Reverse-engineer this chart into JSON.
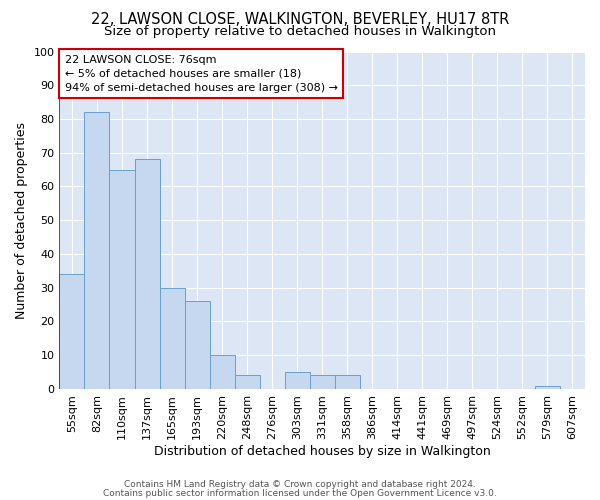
{
  "title1": "22, LAWSON CLOSE, WALKINGTON, BEVERLEY, HU17 8TR",
  "title2": "Size of property relative to detached houses in Walkington",
  "xlabel": "Distribution of detached houses by size in Walkington",
  "ylabel": "Number of detached properties",
  "footnote1": "Contains HM Land Registry data © Crown copyright and database right 2024.",
  "footnote2": "Contains public sector information licensed under the Open Government Licence v3.0.",
  "annotation_title": "22 LAWSON CLOSE: 76sqm",
  "annotation_line1": "← 5% of detached houses are smaller (18)",
  "annotation_line2": "94% of semi-detached houses are larger (308) →",
  "bar_labels": [
    "55sqm",
    "82sqm",
    "110sqm",
    "137sqm",
    "165sqm",
    "193sqm",
    "220sqm",
    "248sqm",
    "276sqm",
    "303sqm",
    "331sqm",
    "358sqm",
    "386sqm",
    "414sqm",
    "441sqm",
    "469sqm",
    "497sqm",
    "524sqm",
    "552sqm",
    "579sqm",
    "607sqm"
  ],
  "bar_values": [
    34,
    82,
    65,
    68,
    30,
    26,
    10,
    4,
    0,
    5,
    4,
    4,
    0,
    0,
    0,
    0,
    0,
    0,
    0,
    1,
    0
  ],
  "bar_color": "#c5d8f0",
  "bar_edge_color": "#6aa0cc",
  "annotation_box_color": "#ffffff",
  "annotation_box_edge": "#cc0000",
  "red_line_color": "#cc0000",
  "background_color": "#dce6f5",
  "grid_color": "#ffffff",
  "ylim": [
    0,
    100
  ],
  "title1_fontsize": 10.5,
  "title2_fontsize": 9.5,
  "xlabel_fontsize": 9,
  "ylabel_fontsize": 9,
  "tick_fontsize": 8,
  "annotation_fontsize": 8,
  "footnote_fontsize": 6.5
}
